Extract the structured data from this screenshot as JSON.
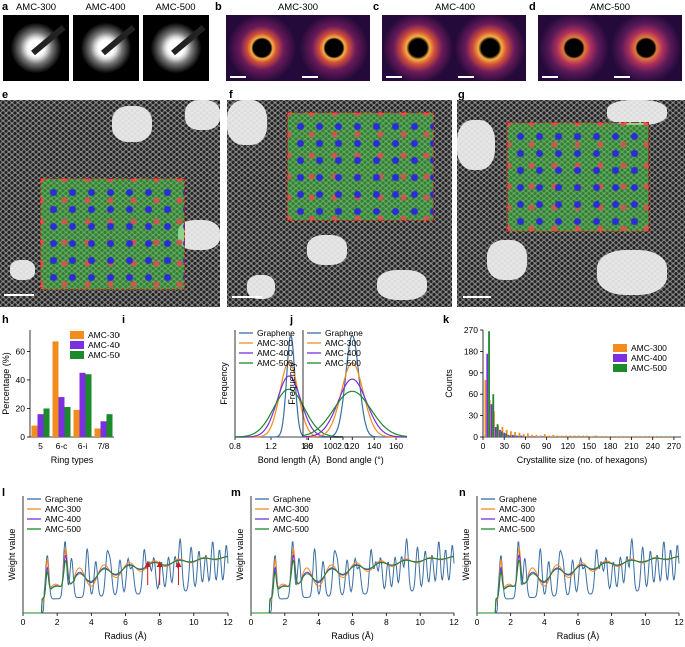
{
  "panels": {
    "a": {
      "label": "a",
      "images": [
        "AMC-300",
        "AMC-400",
        "AMC-500"
      ]
    },
    "b": {
      "label": "b",
      "title": "AMC-300"
    },
    "c": {
      "label": "c",
      "title": "AMC-400"
    },
    "d": {
      "label": "d",
      "title": "AMC-500"
    },
    "e": {
      "label": "e"
    },
    "f": {
      "label": "f"
    },
    "g": {
      "label": "g"
    },
    "h": {
      "label": "h"
    },
    "i": {
      "label": "i"
    },
    "j": {
      "label": "j"
    },
    "k": {
      "label": "k"
    },
    "l": {
      "label": "l"
    },
    "m": {
      "label": "m"
    },
    "n": {
      "label": "n"
    }
  },
  "colors": {
    "graphene": "#3a6ea5",
    "amc300": "#f28c1c",
    "amc400": "#7b2fe0",
    "amc500": "#1a8a2a",
    "diffraction_hot": "#f0a030",
    "diffraction_dark": "#240a3a",
    "overlay_green": "#46c846",
    "overlay_border": "#d01616"
  },
  "chart_data": [
    {
      "id": "h",
      "type": "bar",
      "xlabel": "Ring types",
      "ylabel": "Percentage (%)",
      "ylim": [
        0,
        75
      ],
      "yticks": [
        0,
        20,
        40,
        60
      ],
      "categories": [
        "5",
        "6-c",
        "6-i",
        "7/8"
      ],
      "series": [
        {
          "name": "AMC-300",
          "values": [
            8,
            67,
            19,
            6
          ]
        },
        {
          "name": "AMC-400",
          "values": [
            16,
            28,
            45,
            11
          ]
        },
        {
          "name": "AMC-500",
          "values": [
            20,
            21,
            44,
            16
          ]
        }
      ],
      "legend": "top-right"
    },
    {
      "id": "i",
      "type": "line",
      "xlabel": "Bond length (Å)",
      "ylabel": "Frequency",
      "xlim": [
        0.8,
        2.0
      ],
      "xticks": [
        0.8,
        1.2,
        1.6,
        2.0
      ],
      "series": [
        {
          "name": "Graphene",
          "center": 1.42,
          "sigma": 0.045,
          "peak": 1.0
        },
        {
          "name": "AMC-300",
          "center": 1.4,
          "sigma": 0.1,
          "peak": 0.74
        },
        {
          "name": "AMC-400",
          "center": 1.4,
          "sigma": 0.13,
          "peak": 0.6
        },
        {
          "name": "AMC-500",
          "center": 1.4,
          "sigma": 0.17,
          "peak": 0.47
        }
      ],
      "legend": "top-left"
    },
    {
      "id": "j",
      "type": "line",
      "xlabel": "Bond angle (°)",
      "ylabel": "Frequency",
      "xlim": [
        75,
        170
      ],
      "xticks": [
        80,
        100,
        120,
        140,
        160
      ],
      "series": [
        {
          "name": "Graphene",
          "center": 120,
          "sigma": 6,
          "peak": 1.0
        },
        {
          "name": "AMC-300",
          "center": 120,
          "sigma": 10,
          "peak": 0.73
        },
        {
          "name": "AMC-400",
          "center": 120,
          "sigma": 13,
          "peak": 0.57
        },
        {
          "name": "AMC-500",
          "center": 120,
          "sigma": 17,
          "peak": 0.45
        }
      ],
      "legend": "top-left"
    },
    {
      "id": "k",
      "type": "bar",
      "xlabel": "Crystallite size (no. of hexagons)",
      "ylabel": "Counts",
      "xlim": [
        0,
        280
      ],
      "xticks": [
        0,
        30,
        60,
        90,
        120,
        150,
        180,
        210,
        240,
        270
      ],
      "yticks": [
        0,
        30,
        60,
        90,
        180,
        270
      ],
      "ytick_labels": [
        "0",
        "30",
        "60",
        "90",
        "180",
        "270"
      ],
      "x": [
        6,
        12,
        18,
        24,
        30,
        36,
        42,
        48,
        54,
        60,
        66,
        72,
        78,
        84,
        90,
        96,
        102,
        108,
        114,
        120,
        126,
        132,
        138,
        144,
        150,
        156,
        162,
        168,
        174,
        180,
        186,
        192,
        198,
        204,
        210,
        216,
        222,
        228,
        234,
        240,
        246,
        252,
        258,
        264,
        270
      ],
      "series": [
        {
          "name": "AMC-300",
          "values": [
            80,
            52,
            36,
            16,
            14,
            10,
            8,
            7,
            6,
            4,
            5,
            3,
            3,
            2,
            4,
            2,
            3,
            2,
            2,
            2,
            2,
            2,
            2,
            2,
            2,
            1,
            2,
            1,
            1,
            1,
            1,
            1,
            1,
            1,
            1,
            1,
            1,
            1,
            1,
            1,
            1,
            1,
            1,
            1,
            1
          ]
        },
        {
          "name": "AMC-400",
          "values": [
            170,
            46,
            14,
            10,
            6,
            3,
            3,
            2,
            2,
            1,
            1,
            1,
            0,
            1,
            0,
            0,
            0,
            0,
            0,
            0,
            0,
            0,
            0,
            0,
            0,
            0,
            0,
            0,
            0,
            0,
            0,
            0,
            0,
            0,
            0,
            0,
            0,
            0,
            0,
            0,
            0,
            0,
            0,
            0,
            0
          ]
        },
        {
          "name": "AMC-500",
          "values": [
            265,
            60,
            18,
            8,
            5,
            2,
            2,
            1,
            1,
            0,
            0,
            0,
            0,
            0,
            0,
            0,
            0,
            0,
            0,
            0,
            0,
            0,
            0,
            0,
            0,
            0,
            0,
            0,
            0,
            0,
            0,
            0,
            0,
            0,
            0,
            0,
            0,
            0,
            0,
            0,
            0,
            0,
            0,
            0,
            0
          ]
        }
      ],
      "legend": "top-right"
    },
    {
      "id": "l",
      "type": "line",
      "xlabel": "Radius (Å)",
      "ylabel": "Weight value",
      "xlim": [
        0,
        12
      ],
      "xticks": [
        0,
        2,
        4,
        6,
        8,
        10,
        12
      ],
      "series": [
        {
          "name": "Graphene"
        },
        {
          "name": "AMC-300"
        },
        {
          "name": "AMC-400"
        },
        {
          "name": "AMC-500"
        }
      ],
      "annotations": [
        "red arrows near radius 7.3, 8.0 and 9.1 Å"
      ],
      "legend": "top-left"
    },
    {
      "id": "m",
      "type": "line",
      "xlabel": "Radius (Å)",
      "ylabel": "Weight value",
      "xlim": [
        0,
        12
      ],
      "xticks": [
        0,
        2,
        4,
        6,
        8,
        10,
        12
      ],
      "series": [
        {
          "name": "Graphene"
        },
        {
          "name": "AMC-300"
        },
        {
          "name": "AMC-400"
        },
        {
          "name": "AMC-500"
        }
      ],
      "legend": "top-left"
    },
    {
      "id": "n",
      "type": "line",
      "xlabel": "Radius (Å)",
      "ylabel": "Weight value",
      "xlim": [
        0,
        12
      ],
      "xticks": [
        0,
        2,
        4,
        6,
        8,
        10,
        12
      ],
      "series": [
        {
          "name": "Graphene"
        },
        {
          "name": "AMC-300"
        },
        {
          "name": "AMC-400"
        },
        {
          "name": "AMC-500"
        }
      ],
      "legend": "top-left"
    }
  ]
}
